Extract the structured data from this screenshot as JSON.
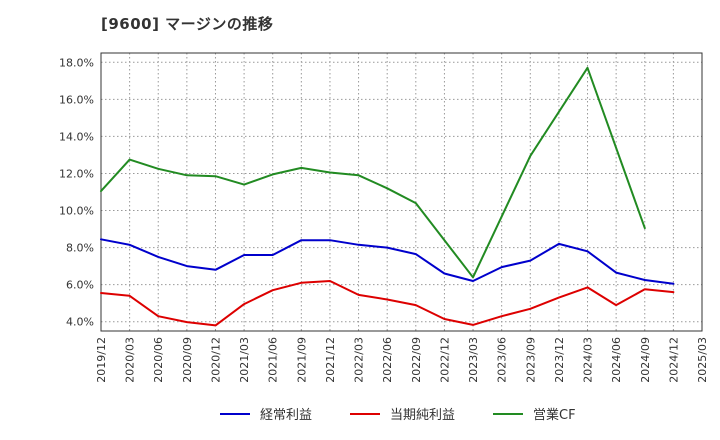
{
  "chart_data": {
    "type": "line",
    "title": "[9600]  マージンの推移",
    "x": [
      "2019/12",
      "2020/03",
      "2020/06",
      "2020/09",
      "2020/12",
      "2021/03",
      "2021/06",
      "2021/09",
      "2021/12",
      "2022/03",
      "2022/06",
      "2022/09",
      "2022/12",
      "2023/03",
      "2023/06",
      "2023/09",
      "2023/12",
      "2024/03",
      "2024/06",
      "2024/09",
      "2024/12"
    ],
    "x_ticks": [
      "2019/12",
      "2020/03",
      "2020/06",
      "2020/09",
      "2020/12",
      "2021/03",
      "2021/06",
      "2021/09",
      "2021/12",
      "2022/03",
      "2022/06",
      "2022/09",
      "2022/12",
      "2023/03",
      "2023/06",
      "2023/09",
      "2023/12",
      "2024/03",
      "2024/06",
      "2024/09",
      "2024/12",
      "2025/03"
    ],
    "y_ticks": [
      "4.0%",
      "6.0%",
      "8.0%",
      "10.0%",
      "12.0%",
      "14.0%",
      "16.0%",
      "18.0%"
    ],
    "ylim": [
      3.5,
      18.5
    ],
    "unit": "%",
    "grid": true,
    "legend_position": "bottom",
    "series": [
      {
        "name": "経常利益",
        "color": "#0000cc",
        "values": [
          8.45,
          8.15,
          7.5,
          7.0,
          6.8,
          7.6,
          7.6,
          8.4,
          8.4,
          8.15,
          8.0,
          7.65,
          6.6,
          6.2,
          6.95,
          7.3,
          8.2,
          7.8,
          6.65,
          6.25,
          6.05
        ]
      },
      {
        "name": "当期純利益",
        "color": "#dd0000",
        "values": [
          5.55,
          5.4,
          4.3,
          3.98,
          3.8,
          4.95,
          5.7,
          6.1,
          6.2,
          5.45,
          5.2,
          4.9,
          4.15,
          3.83,
          4.3,
          4.7,
          5.3,
          5.85,
          4.9,
          5.75,
          5.6
        ]
      },
      {
        "name": "営業CF",
        "color": "#228b22",
        "values": [
          11.05,
          12.75,
          12.25,
          11.9,
          11.85,
          11.4,
          11.95,
          12.3,
          12.05,
          11.9,
          11.2,
          10.4,
          null,
          6.4,
          null,
          12.95,
          null,
          17.7,
          null,
          9.05,
          null
        ]
      }
    ]
  }
}
